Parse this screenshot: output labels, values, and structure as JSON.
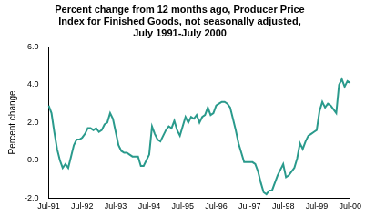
{
  "chart_data": {
    "type": "line",
    "title": [
      "Percent change from 12 months ago, Producer Price",
      "Index for Finished Goods, not seasonally adjusted,",
      "July 1991-July 2000"
    ],
    "y_label": "Percent change",
    "color": "#2a9a8c",
    "grid": false,
    "categories": [
      "Jul-91",
      null,
      null,
      null,
      null,
      null,
      null,
      null,
      null,
      null,
      null,
      null,
      "Jul-92",
      null,
      null,
      null,
      null,
      null,
      null,
      null,
      null,
      null,
      null,
      null,
      "Jul-93",
      null,
      null,
      null,
      null,
      null,
      null,
      null,
      null,
      null,
      null,
      null,
      "Jul-94",
      null,
      null,
      null,
      null,
      null,
      null,
      null,
      null,
      null,
      null,
      null,
      "Jul-95",
      null,
      null,
      null,
      null,
      null,
      null,
      null,
      null,
      null,
      null,
      null,
      "Jul-96",
      null,
      null,
      null,
      null,
      null,
      null,
      null,
      null,
      null,
      null,
      null,
      "Jul-97",
      null,
      null,
      null,
      null,
      null,
      null,
      null,
      null,
      null,
      null,
      null,
      "Jul-98",
      null,
      null,
      null,
      null,
      null,
      null,
      null,
      null,
      null,
      null,
      null,
      "Jul-99",
      null,
      null,
      null,
      null,
      null,
      null,
      null,
      null,
      null,
      null,
      null,
      "Jul-00"
    ],
    "values": [
      2.9,
      2.5,
      1.5,
      0.6,
      0.0,
      -0.4,
      -0.2,
      -0.4,
      0.2,
      0.8,
      1.1,
      1.1,
      1.2,
      1.4,
      1.7,
      1.7,
      1.6,
      1.7,
      1.5,
      1.6,
      1.9,
      2.0,
      2.5,
      2.2,
      1.5,
      0.8,
      0.5,
      0.4,
      0.4,
      0.3,
      0.2,
      0.2,
      0.2,
      -0.3,
      -0.3,
      0.0,
      0.3,
      1.8,
      1.4,
      1.1,
      1.0,
      1.3,
      1.6,
      1.8,
      1.7,
      2.1,
      1.6,
      1.3,
      1.8,
      2.3,
      2.0,
      2.3,
      2.2,
      2.4,
      2.0,
      2.3,
      2.4,
      2.8,
      2.4,
      2.5,
      2.9,
      3.0,
      3.1,
      3.1,
      3.0,
      2.8,
      2.2,
      1.6,
      0.9,
      0.4,
      -0.1,
      -0.1,
      -0.1,
      -0.1,
      -0.2,
      -0.6,
      -1.2,
      -1.7,
      -1.8,
      -1.6,
      -1.6,
      -1.2,
      -0.8,
      -0.5,
      -0.2,
      -0.9,
      -0.8,
      -0.6,
      -0.4,
      0.1,
      0.9,
      0.6,
      1.0,
      1.3,
      1.4,
      1.5,
      1.6,
      2.6,
      3.1,
      2.8,
      3.0,
      2.9,
      2.7,
      2.5,
      4.0,
      4.3,
      3.9,
      4.2,
      4.1
    ],
    "ylim": [
      -2,
      6
    ],
    "yticks": [
      {
        "value": -2,
        "label": "-2.0"
      },
      {
        "value": 0,
        "label": "0.0"
      },
      {
        "value": 2,
        "label": "2.0"
      },
      {
        "value": 4,
        "label": "4.0"
      },
      {
        "value": 6,
        "label": "6.0"
      }
    ]
  }
}
